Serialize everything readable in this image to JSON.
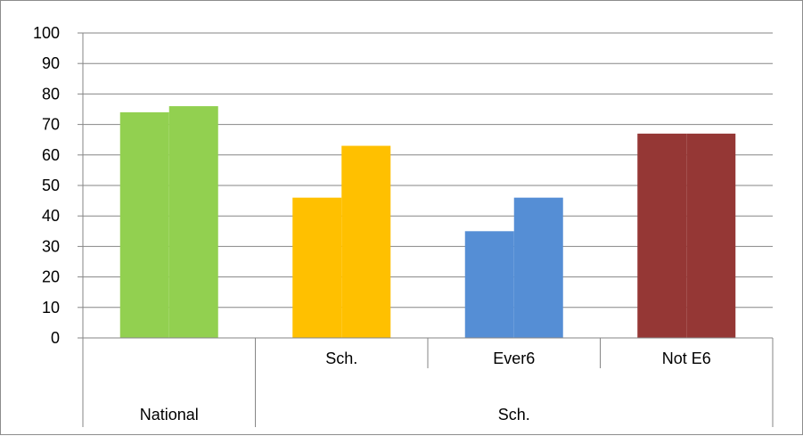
{
  "chart_data": {
    "type": "bar",
    "y_ticks": [
      "0",
      "10",
      "20",
      "30",
      "40",
      "50",
      "60",
      "70",
      "80",
      "90",
      "100"
    ],
    "ylim": [
      0,
      100
    ],
    "grid": true,
    "legend": "none",
    "groups": [
      {
        "label": "National",
        "color": "#92d050",
        "sub_label": "",
        "values": [
          74,
          76
        ]
      },
      {
        "label": "Sch.",
        "color": "#ffc000",
        "sub_label": "Sch.",
        "values": [
          46,
          63
        ]
      },
      {
        "label": "Sch.",
        "color": "#558ed5",
        "sub_label": "Ever6",
        "values": [
          35,
          46
        ]
      },
      {
        "label": "Sch.",
        "color": "#953735",
        "sub_label": "Not E6",
        "values": [
          67,
          67
        ]
      }
    ],
    "parent_categories": [
      "National",
      "Sch."
    ]
  }
}
